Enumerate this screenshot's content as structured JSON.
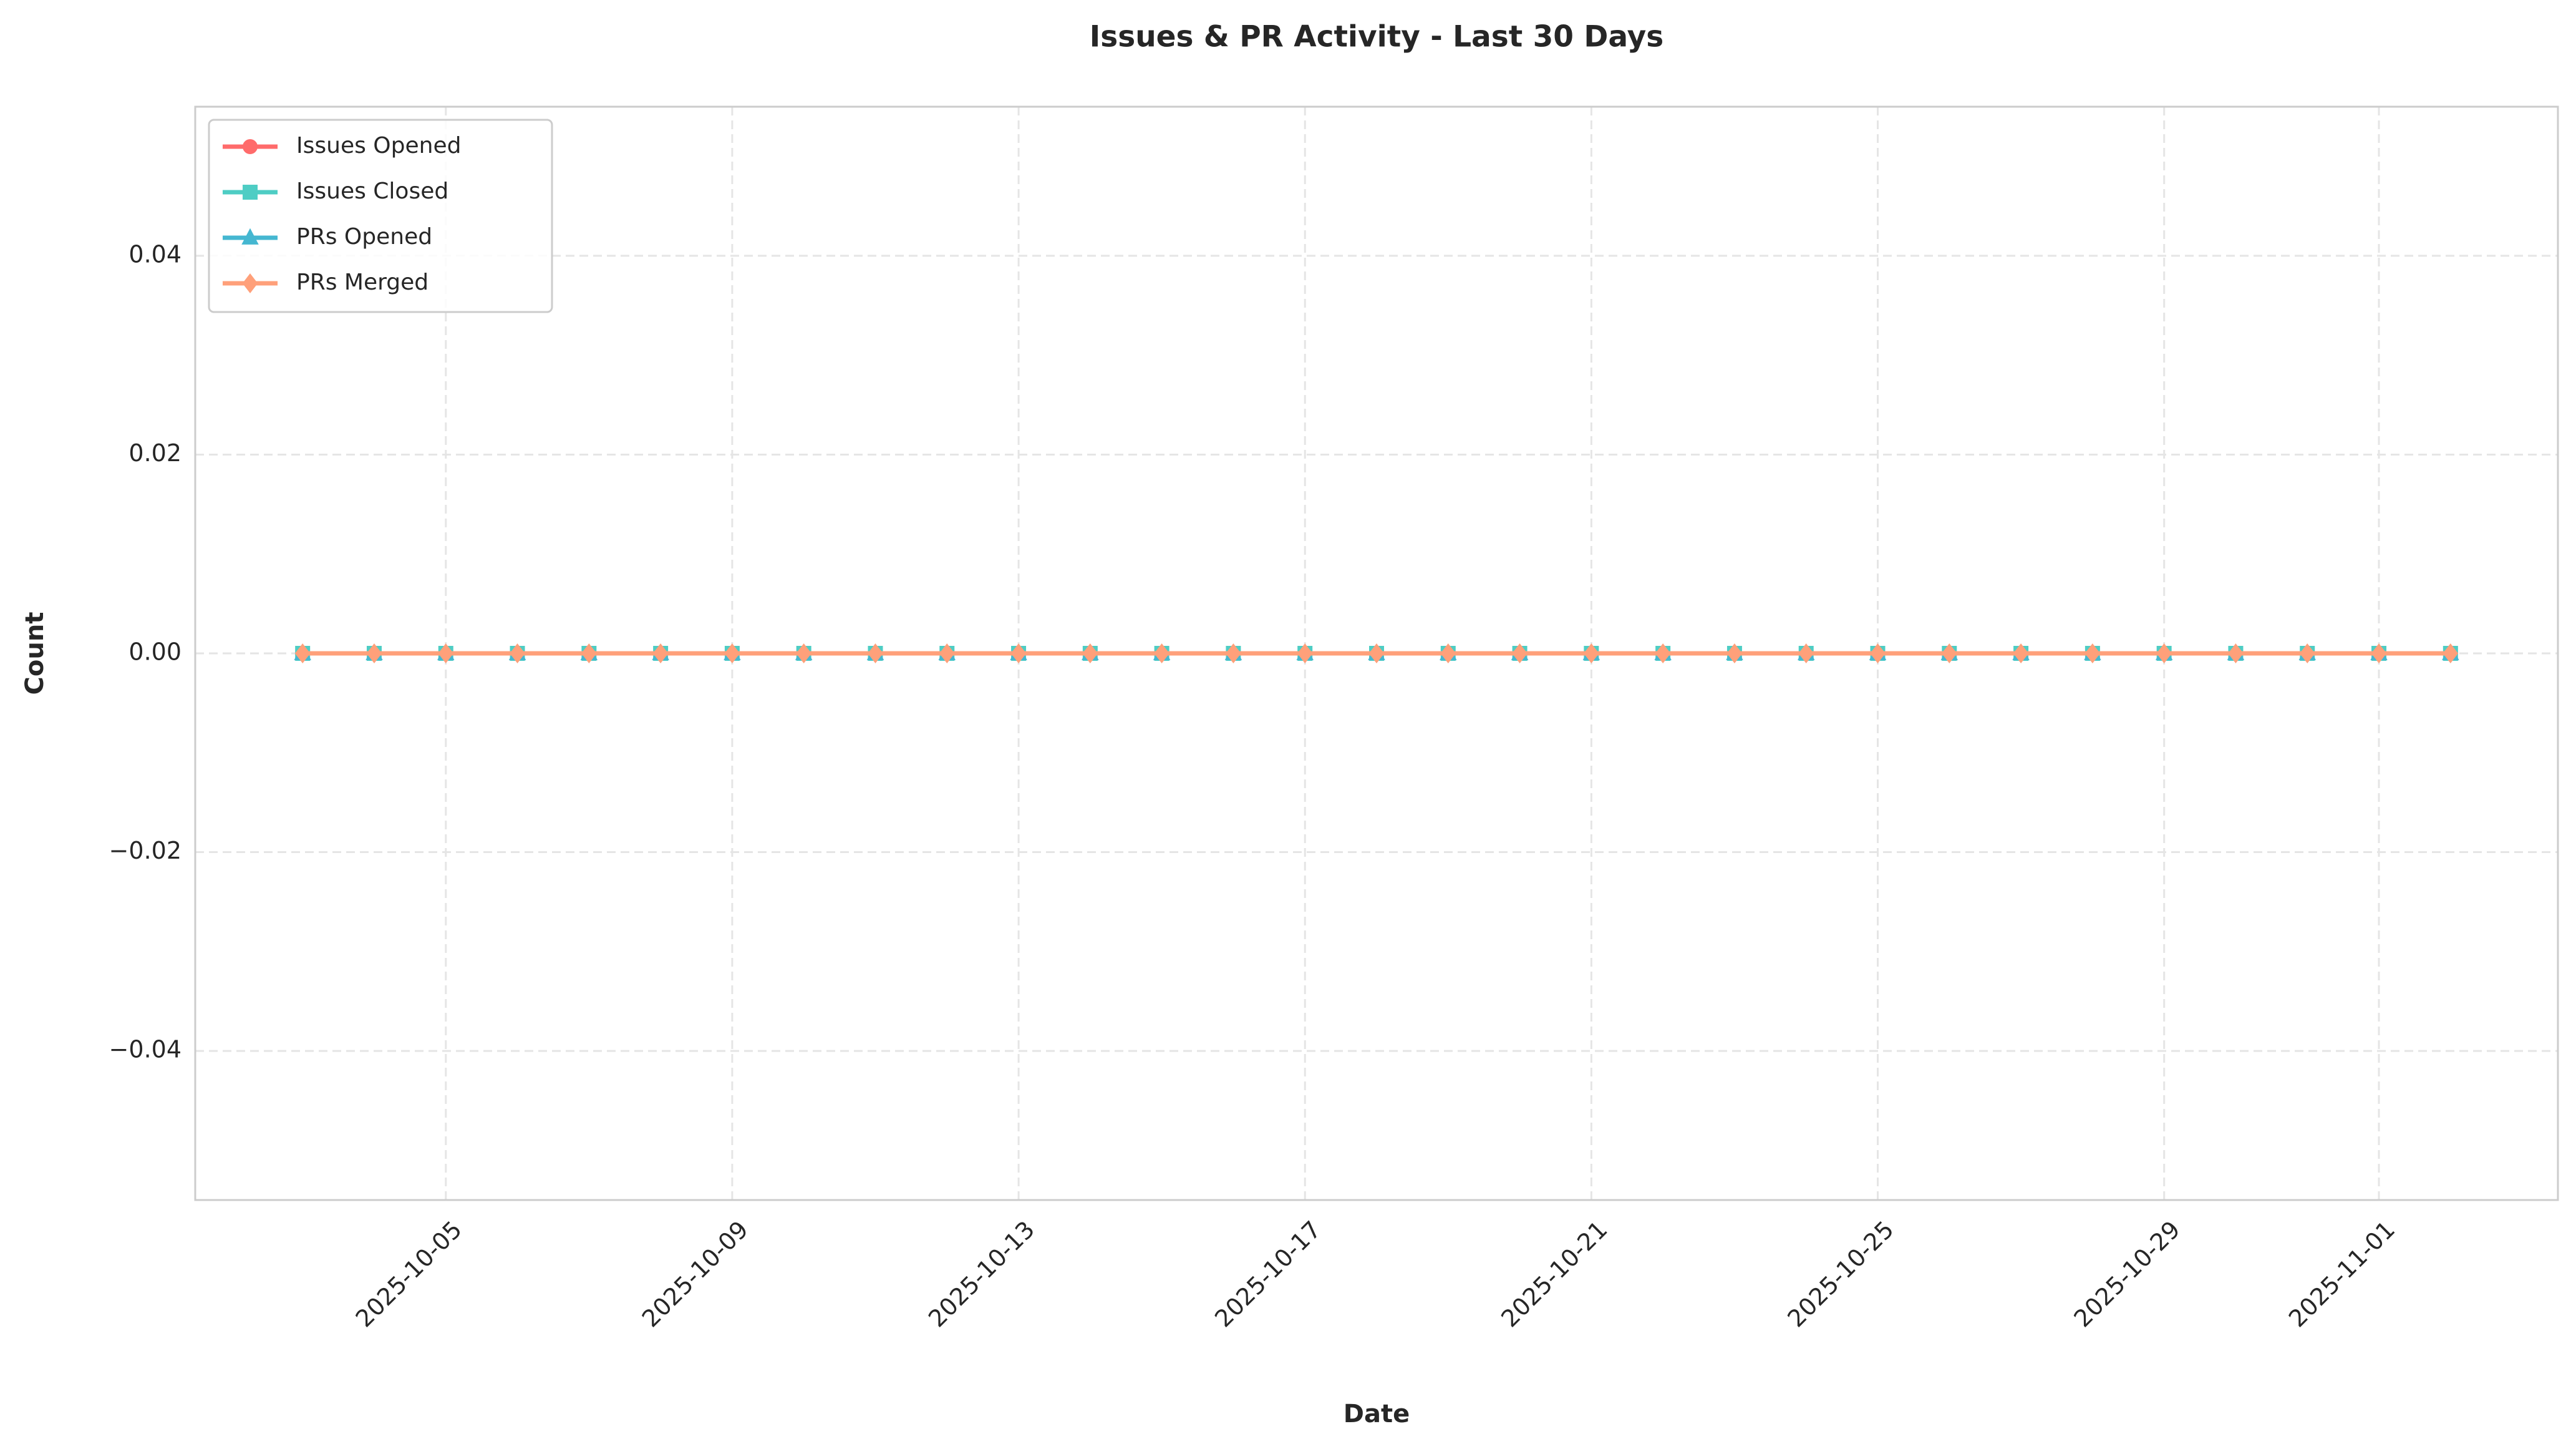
{
  "chart_data": {
    "type": "line",
    "title": "Issues & PR Activity - Last 30 Days",
    "x_label": "Date",
    "y_label": "Count",
    "x": [
      "2025-10-03",
      "2025-10-04",
      "2025-10-05",
      "2025-10-06",
      "2025-10-07",
      "2025-10-08",
      "2025-10-09",
      "2025-10-10",
      "2025-10-11",
      "2025-10-12",
      "2025-10-13",
      "2025-10-14",
      "2025-10-15",
      "2025-10-16",
      "2025-10-17",
      "2025-10-18",
      "2025-10-19",
      "2025-10-20",
      "2025-10-21",
      "2025-10-22",
      "2025-10-23",
      "2025-10-24",
      "2025-10-25",
      "2025-10-26",
      "2025-10-27",
      "2025-10-28",
      "2025-10-29",
      "2025-10-30",
      "2025-10-31",
      "2025-11-01",
      "2025-11-02"
    ],
    "series": [
      {
        "name": "Issues Opened",
        "color": "#ff6b6b",
        "marker": "circle",
        "values": [
          0,
          0,
          0,
          0,
          0,
          0,
          0,
          0,
          0,
          0,
          0,
          0,
          0,
          0,
          0,
          0,
          0,
          0,
          0,
          0,
          0,
          0,
          0,
          0,
          0,
          0,
          0,
          0,
          0,
          0,
          0
        ]
      },
      {
        "name": "Issues Closed",
        "color": "#4ecdc4",
        "marker": "square",
        "values": [
          0,
          0,
          0,
          0,
          0,
          0,
          0,
          0,
          0,
          0,
          0,
          0,
          0,
          0,
          0,
          0,
          0,
          0,
          0,
          0,
          0,
          0,
          0,
          0,
          0,
          0,
          0,
          0,
          0,
          0,
          0
        ]
      },
      {
        "name": "PRs Opened",
        "color": "#45b7d1",
        "marker": "triangle",
        "values": [
          0,
          0,
          0,
          0,
          0,
          0,
          0,
          0,
          0,
          0,
          0,
          0,
          0,
          0,
          0,
          0,
          0,
          0,
          0,
          0,
          0,
          0,
          0,
          0,
          0,
          0,
          0,
          0,
          0,
          0,
          0
        ]
      },
      {
        "name": "PRs Merged",
        "color": "#ffa07a",
        "marker": "diamond",
        "values": [
          0,
          0,
          0,
          0,
          0,
          0,
          0,
          0,
          0,
          0,
          0,
          0,
          0,
          0,
          0,
          0,
          0,
          0,
          0,
          0,
          0,
          0,
          0,
          0,
          0,
          0,
          0,
          0,
          0,
          0,
          0
        ]
      }
    ],
    "xlim": [
      "2025-10-01T12:00:00Z",
      "2025-11-03T12:00:00Z"
    ],
    "xticks": [
      "2025-10-05",
      "2025-10-09",
      "2025-10-13",
      "2025-10-17",
      "2025-10-21",
      "2025-10-25",
      "2025-10-29",
      "2025-11-01"
    ],
    "ylim": [
      -0.055,
      0.055
    ],
    "yticks": [
      {
        "value": -0.04,
        "label": "−0.04"
      },
      {
        "value": -0.02,
        "label": "−0.02"
      },
      {
        "value": 0,
        "label": "0.00"
      },
      {
        "value": 0.02,
        "label": "0.02"
      },
      {
        "value": 0.04,
        "label": "0.04"
      }
    ],
    "grid": true,
    "legend": "upper left"
  }
}
